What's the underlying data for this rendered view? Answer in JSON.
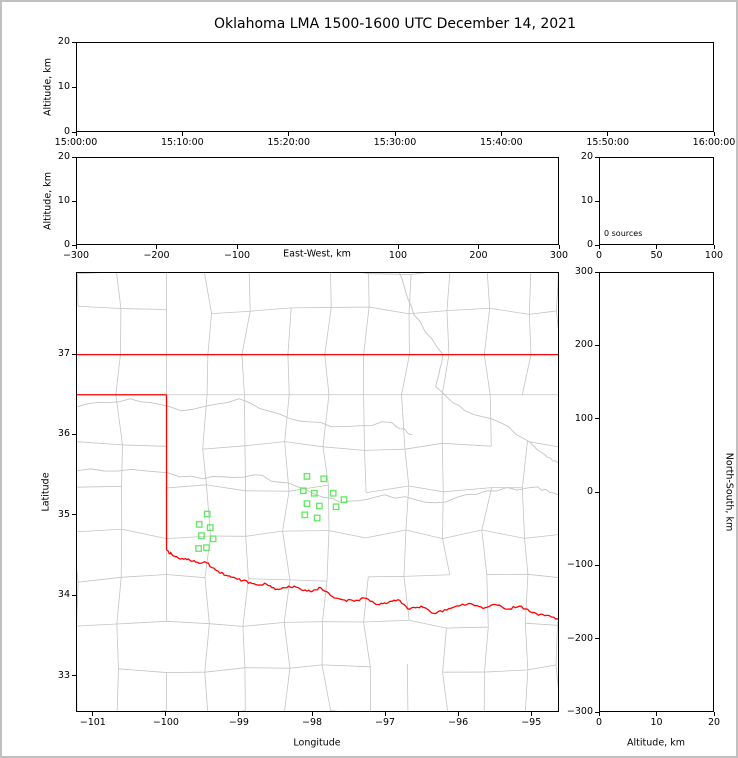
{
  "title": "Oklahoma LMA 1500-1600 UTC December 14, 2021",
  "colors": {
    "frame": "#c0c0c0",
    "axis": "#000000",
    "county_line": "#c4c4c4",
    "gray_river": "#c4c4c4",
    "state_border": "#ff0000",
    "red_river": "#ff0000",
    "source_point": "#62e762",
    "background": "#ffffff"
  },
  "chart_data": {
    "type": "scatter",
    "title": "Oklahoma LMA 1500-1600 UTC December 14, 2021",
    "panels": {
      "time_height": {
        "type": "scatter",
        "ylabel": "Altitude, km",
        "xlim_seconds": [
          0,
          3600
        ],
        "x_ticks_seconds": [
          0,
          600,
          1200,
          1800,
          2400,
          3000,
          3600
        ],
        "x_tick_labels": [
          "15:00:00",
          "15:10:00",
          "15:20:00",
          "15:30:00",
          "15:40:00",
          "15:50:00",
          "16:00:00"
        ],
        "ylim": [
          0,
          20
        ],
        "y_ticks": [
          0,
          10,
          20
        ],
        "y_tick_labels": [
          "0",
          "10",
          "20"
        ],
        "points": []
      },
      "ew_height": {
        "type": "scatter",
        "xlabel": "East-West, km",
        "ylabel": "Altitude, km",
        "xlim": [
          -300,
          300
        ],
        "x_ticks": [
          -300,
          -200,
          -100,
          100,
          200,
          300
        ],
        "x_tick_labels": [
          "−300",
          "−200",
          "−100",
          "100",
          "200",
          "300"
        ],
        "ylim": [
          0,
          20
        ],
        "y_ticks": [
          0,
          10,
          20
        ],
        "y_tick_labels": [
          "0",
          "10",
          "20"
        ],
        "points": []
      },
      "histogram": {
        "type": "histogram",
        "annotation": "0 sources",
        "xlim": [
          0,
          100
        ],
        "x_ticks": [
          0,
          50,
          100
        ],
        "x_tick_labels": [
          "0",
          "50",
          "100"
        ],
        "ylim": [
          0,
          20
        ],
        "y_ticks": [
          0,
          10,
          20
        ],
        "y_tick_labels": [
          "0",
          "10",
          "20"
        ],
        "values": []
      },
      "plan_map": {
        "type": "scatter",
        "xlabel": "Longitude",
        "ylabel": "Latitude",
        "xlim": [
          -101.23,
          -94.62
        ],
        "x_ticks": [
          -101,
          -100,
          -99,
          -98,
          -97,
          -96,
          -95
        ],
        "x_tick_labels": [
          "−101",
          "−100",
          "−99",
          "−98",
          "−97",
          "−96",
          "−95"
        ],
        "ylim": [
          32.55,
          38.02
        ],
        "y_ticks": [
          33,
          34,
          35,
          36,
          37
        ],
        "y_tick_labels": [
          "33",
          "34",
          "35",
          "36",
          "37"
        ],
        "sources_lon_lat": [
          [
            -98.07,
            35.48
          ],
          [
            -97.84,
            35.45
          ],
          [
            -98.12,
            35.3
          ],
          [
            -97.97,
            35.27
          ],
          [
            -97.71,
            35.27
          ],
          [
            -97.56,
            35.19
          ],
          [
            -97.67,
            35.1
          ],
          [
            -98.07,
            35.14
          ],
          [
            -97.9,
            35.11
          ],
          [
            -98.1,
            35.0
          ],
          [
            -97.93,
            34.96
          ],
          [
            -99.44,
            35.01
          ],
          [
            -99.55,
            34.88
          ],
          [
            -99.4,
            34.84
          ],
          [
            -99.52,
            34.74
          ],
          [
            -99.36,
            34.7
          ],
          [
            -99.45,
            34.59
          ],
          [
            -99.56,
            34.58
          ]
        ],
        "state_border": {
          "north_lat": 37.0,
          "panhandle_south_lat": 36.5,
          "texas_vertical_lon": -100.0,
          "vertical_lat_range": [
            34.56,
            36.5
          ],
          "red_river_lon_lat": [
            [
              -100.0,
              34.56
            ],
            [
              -99.93,
              34.51
            ],
            [
              -99.85,
              34.47
            ],
            [
              -99.72,
              34.44
            ],
            [
              -99.6,
              34.41
            ],
            [
              -99.45,
              34.4
            ],
            [
              -99.3,
              34.3
            ],
            [
              -99.21,
              34.25
            ],
            [
              -99.1,
              34.22
            ],
            [
              -98.95,
              34.18
            ],
            [
              -98.8,
              34.14
            ],
            [
              -98.62,
              34.13
            ],
            [
              -98.48,
              34.07
            ],
            [
              -98.32,
              34.11
            ],
            [
              -98.17,
              34.08
            ],
            [
              -98.02,
              34.04
            ],
            [
              -97.88,
              34.09
            ],
            [
              -97.72,
              33.98
            ],
            [
              -97.58,
              33.94
            ],
            [
              -97.42,
              33.92
            ],
            [
              -97.28,
              33.96
            ],
            [
              -97.12,
              33.88
            ],
            [
              -96.98,
              33.89
            ],
            [
              -96.82,
              33.94
            ],
            [
              -96.66,
              33.82
            ],
            [
              -96.5,
              33.86
            ],
            [
              -96.33,
              33.77
            ],
            [
              -96.15,
              33.81
            ],
            [
              -95.98,
              33.86
            ],
            [
              -95.82,
              33.89
            ],
            [
              -95.65,
              33.83
            ],
            [
              -95.48,
              33.88
            ],
            [
              -95.32,
              33.82
            ],
            [
              -95.15,
              33.86
            ],
            [
              -94.98,
              33.78
            ],
            [
              -94.8,
              33.74
            ],
            [
              -94.62,
              33.7
            ]
          ]
        },
        "gray_rivers_lon_lat": [
          [
            [
              -101.23,
              35.55
            ],
            [
              -100.3,
              35.55
            ],
            [
              -99.5,
              35.45
            ],
            [
              -98.8,
              35.5
            ],
            [
              -98.2,
              35.35
            ],
            [
              -97.6,
              35.15
            ],
            [
              -97.0,
              35.25
            ],
            [
              -96.3,
              35.15
            ],
            [
              -95.6,
              35.3
            ],
            [
              -94.9,
              35.35
            ],
            [
              -94.62,
              35.25
            ]
          ],
          [
            [
              -96.8,
              38.02
            ],
            [
              -96.6,
              37.5
            ],
            [
              -96.2,
              37.0
            ],
            [
              -96.3,
              36.6
            ],
            [
              -95.9,
              36.3
            ],
            [
              -95.3,
              36.1
            ],
            [
              -94.8,
              35.75
            ],
            [
              -94.62,
              35.65
            ]
          ],
          [
            [
              -101.23,
              36.35
            ],
            [
              -100.5,
              36.45
            ],
            [
              -99.8,
              36.3
            ],
            [
              -99.0,
              36.45
            ],
            [
              -98.3,
              36.2
            ],
            [
              -97.6,
              36.1
            ],
            [
              -96.9,
              36.15
            ],
            [
              -96.62,
              36.0
            ]
          ]
        ]
      },
      "ns_height": {
        "type": "scatter",
        "xlabel": "Altitude, km",
        "ylabel": "North-South, km",
        "xlim": [
          0,
          20
        ],
        "x_ticks": [
          0,
          10,
          20
        ],
        "x_tick_labels": [
          "0",
          "10",
          "20"
        ],
        "ylim": [
          -300,
          300
        ],
        "y_ticks": [
          -300,
          -200,
          -100,
          0,
          100,
          200,
          300
        ],
        "y_tick_labels": [
          "−300",
          "−200",
          "−100",
          "0",
          "100",
          "200",
          "300"
        ],
        "points": []
      }
    }
  }
}
